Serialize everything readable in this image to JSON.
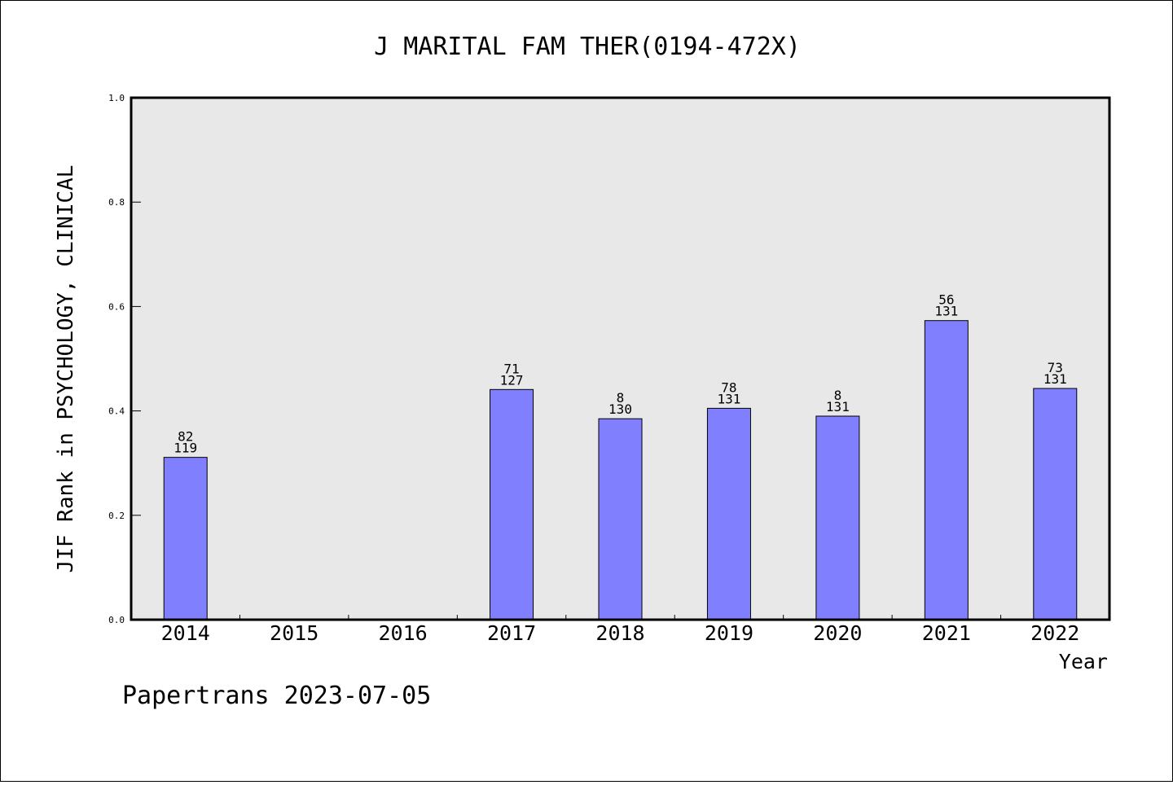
{
  "chart_data": {
    "type": "bar",
    "title": "J MARITAL FAM THER(0194-472X)",
    "xlabel": "Year",
    "ylabel": "JIF Rank in PSYCHOLOGY, CLINICAL",
    "ylim": [
      0,
      1.0
    ],
    "yticks": [
      "0.0",
      "0.2",
      "0.4",
      "0.6",
      "0.8",
      "1.0"
    ],
    "categories": [
      "2014",
      "2015",
      "2016",
      "2017",
      "2018",
      "2019",
      "2020",
      "2021",
      "2022"
    ],
    "values": [
      0.311,
      null,
      null,
      0.441,
      0.385,
      0.405,
      0.39,
      0.573,
      0.443
    ],
    "labels_top": [
      "82",
      "",
      "",
      "71",
      "8",
      "78",
      "8",
      "56",
      "73"
    ],
    "labels_bottom": [
      "119",
      "",
      "",
      "127",
      "130",
      "131",
      "131",
      "131",
      "131"
    ],
    "bar_color": "#8080ff",
    "plot_background": "#e8e8e8",
    "grid": false
  },
  "footer": "Papertrans 2023-07-05"
}
